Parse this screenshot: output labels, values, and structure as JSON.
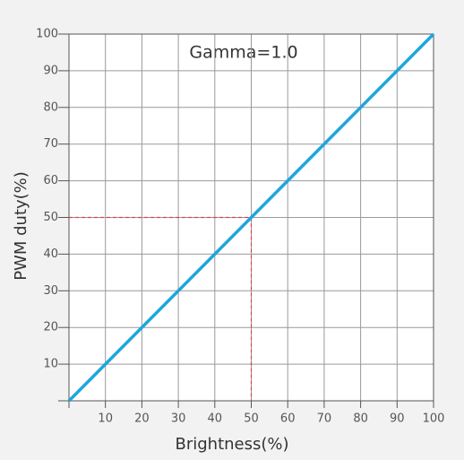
{
  "chart_data": {
    "type": "line",
    "annotation": "Gamma=1.0",
    "x_label": "Brightness(%)",
    "y_label": "PWM duty(%)",
    "x": [
      0,
      100
    ],
    "series": [
      {
        "color": "#1ea6dd",
        "values": [
          0,
          100
        ]
      }
    ],
    "xlim": [
      0,
      100
    ],
    "ylim": [
      0,
      100
    ],
    "xticks": [
      10,
      20,
      30,
      40,
      50,
      60,
      70,
      80,
      90,
      100
    ],
    "yticks": [
      10,
      20,
      30,
      40,
      50,
      60,
      70,
      80,
      90,
      100
    ],
    "grid": true,
    "reference": {
      "x": 50,
      "y": 50,
      "color": "#d9434a"
    }
  }
}
